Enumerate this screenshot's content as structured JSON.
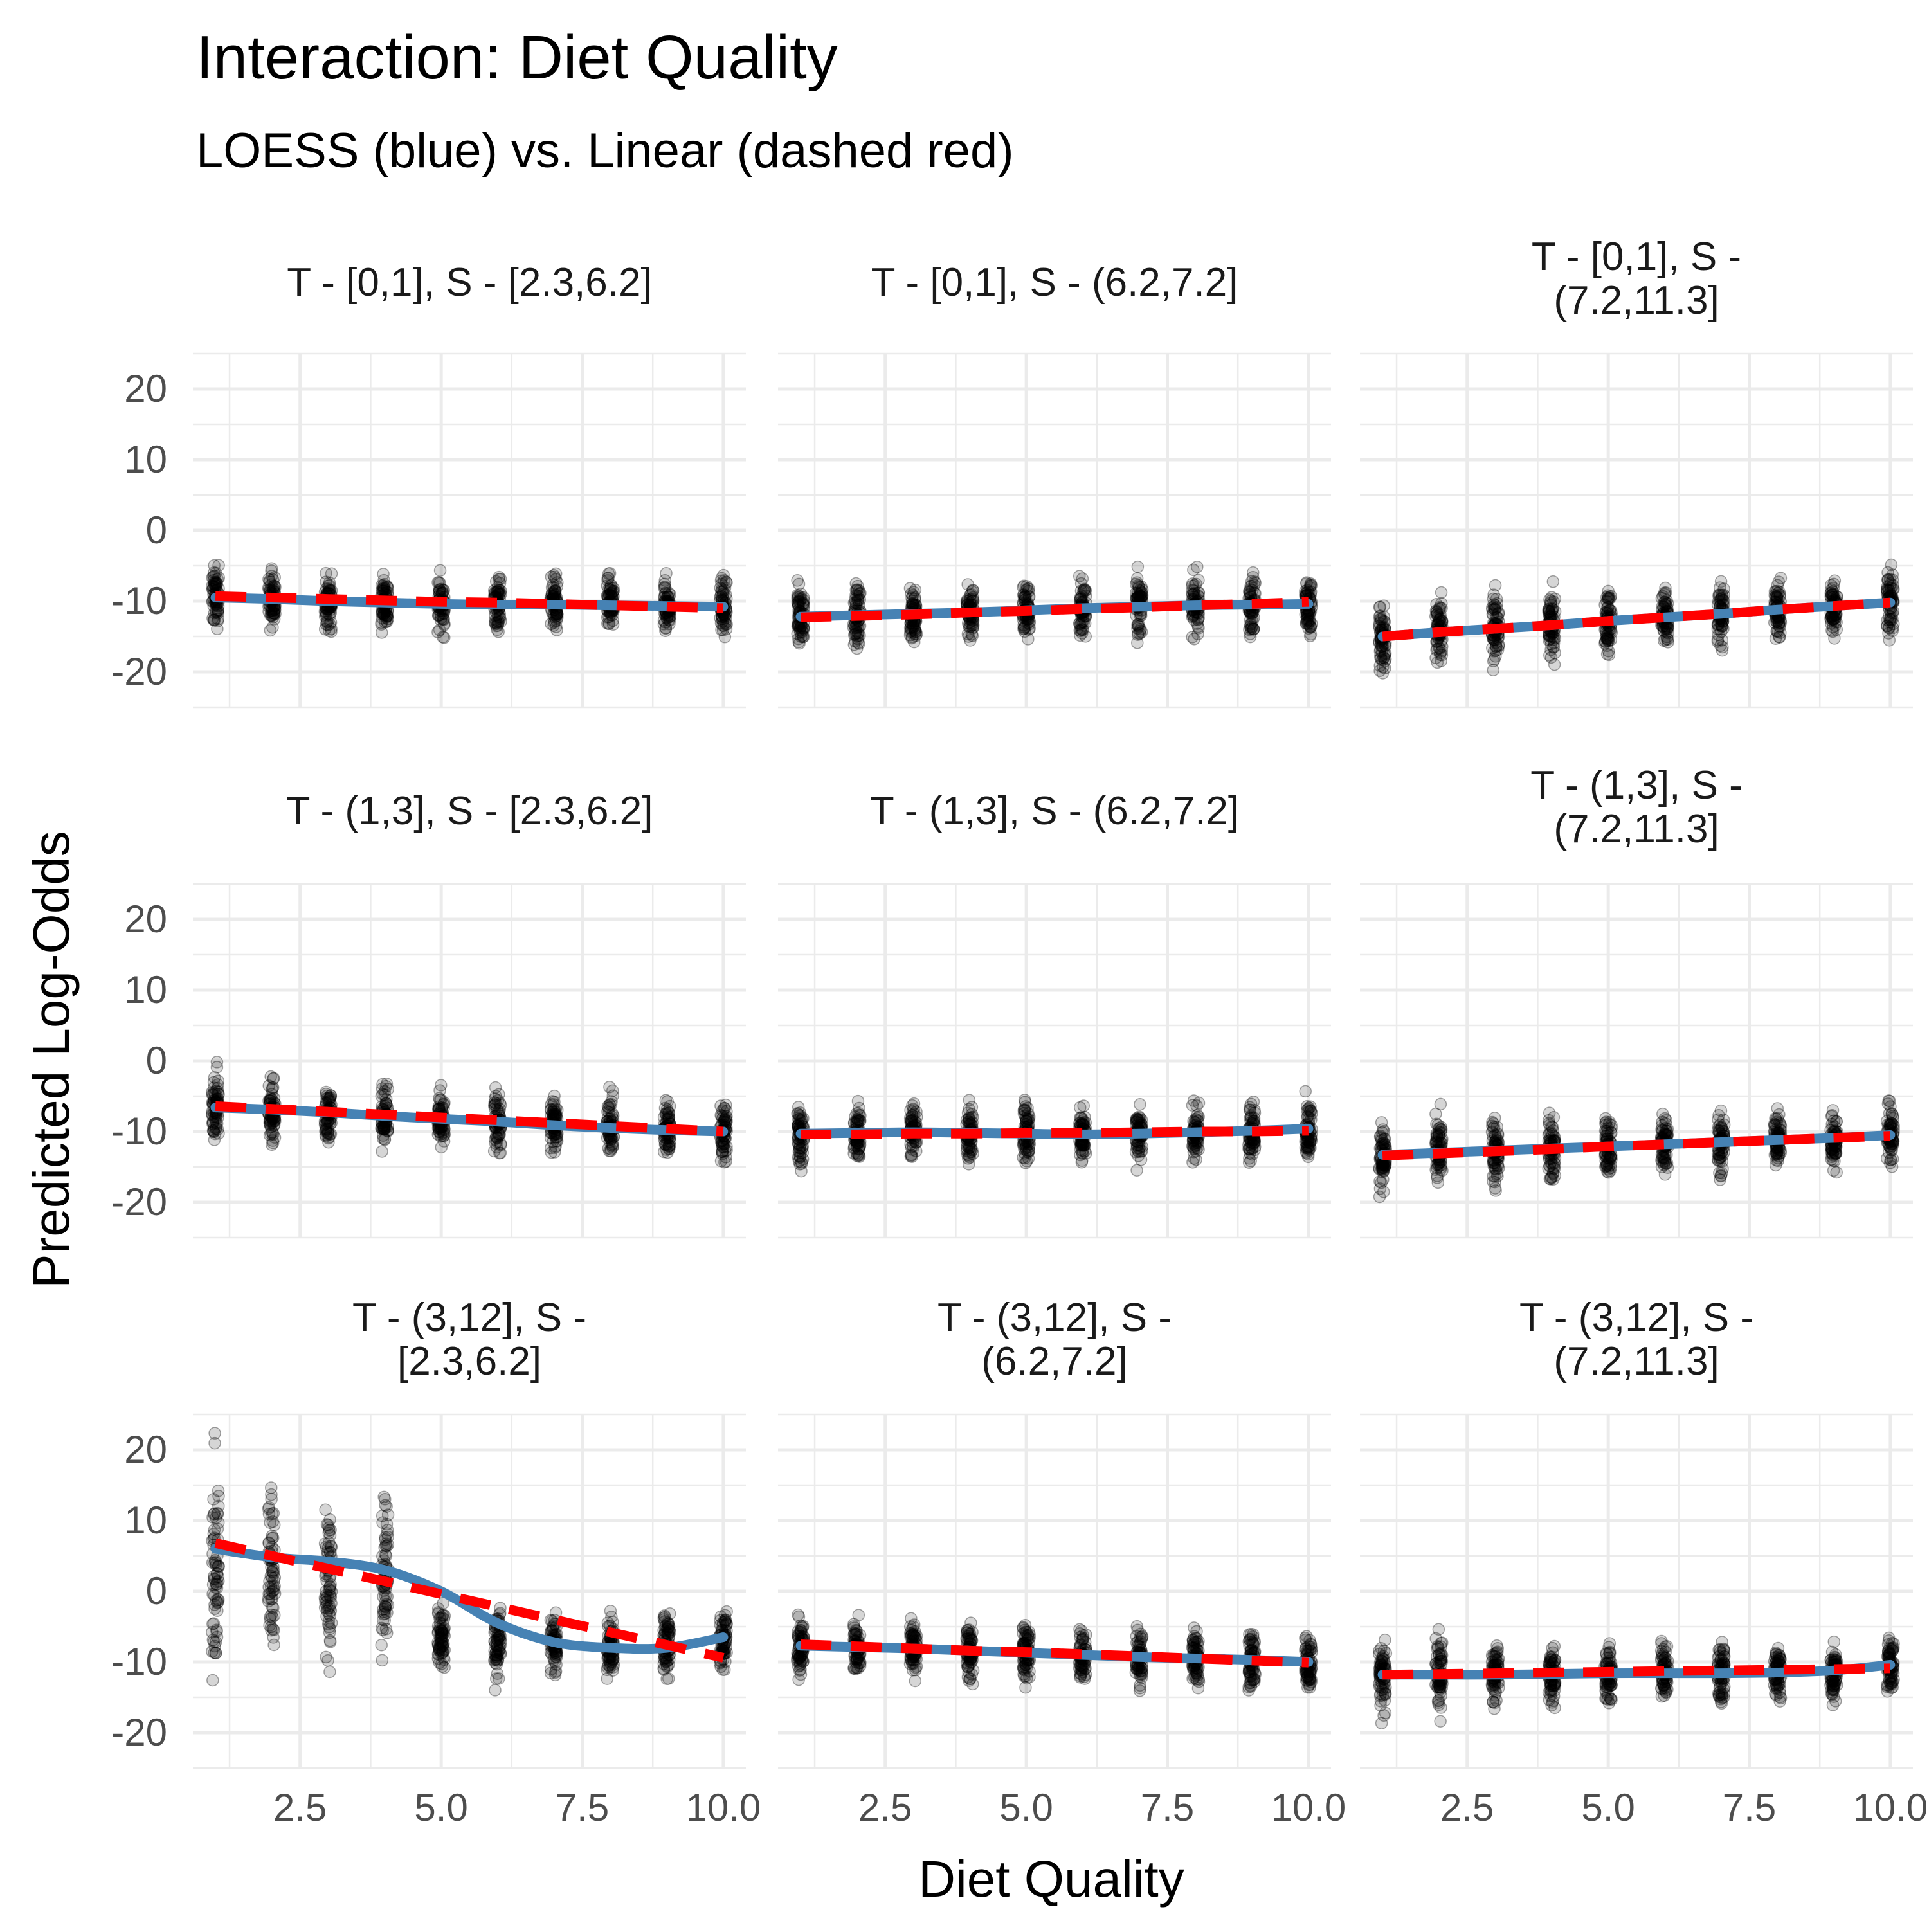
{
  "chart_data": {
    "type": "scatter",
    "title": "Interaction: Diet Quality",
    "subtitle": "LOESS (blue) vs. Linear (dashed red)",
    "xlabel": "Diet Quality",
    "ylabel": "Predicted Log-Odds",
    "xlim": [
      0.6,
      10.4
    ],
    "ylim": [
      -25,
      25
    ],
    "x_ticks": [
      2.5,
      5.0,
      7.5,
      10.0
    ],
    "x_tick_labels": [
      "2.5",
      "5.0",
      "7.5",
      "10.0"
    ],
    "y_ticks": [
      20,
      10,
      0,
      -10,
      -20
    ],
    "y_tick_labels": [
      "20",
      "10",
      "0",
      "-10",
      "-20"
    ],
    "x_values": [
      1,
      2,
      3,
      4,
      5,
      6,
      7,
      8,
      9,
      10
    ],
    "grid": true,
    "facets": [
      {
        "strip": [
          "T - [0,1], S - [2.3,6.2]"
        ],
        "points_center": [
          -9.5,
          -9.8,
          -10.0,
          -10.2,
          -10.5,
          -10.3,
          -10.4,
          -10.6,
          -10.5,
          -10.8
        ],
        "points_spread": [
          3.6,
          3.4,
          3.4,
          3.4,
          3.3,
          3.4,
          3.3,
          3.3,
          3.2,
          3.3
        ],
        "loess": [
          -9.5,
          -9.7,
          -10.0,
          -10.2,
          -10.4,
          -10.5,
          -10.5,
          -10.6,
          -10.7,
          -10.8
        ],
        "linear": [
          -9.3,
          -9.5,
          -9.7,
          -9.9,
          -10.1,
          -10.2,
          -10.4,
          -10.6,
          -10.8,
          -11.0
        ]
      },
      {
        "strip": [
          "T - [0,1], S - (6.2,7.2]"
        ],
        "points_center": [
          -12.0,
          -12.0,
          -11.8,
          -11.5,
          -11.2,
          -11.0,
          -10.8,
          -10.5,
          -10.5,
          -10.5
        ],
        "points_spread": [
          3.6,
          3.6,
          3.6,
          3.6,
          3.6,
          3.6,
          3.5,
          3.5,
          3.4,
          3.4
        ],
        "loess": [
          -12.2,
          -12.0,
          -11.8,
          -11.6,
          -11.3,
          -11.0,
          -10.8,
          -10.6,
          -10.5,
          -10.4
        ],
        "linear": [
          -12.3,
          -12.1,
          -11.9,
          -11.6,
          -11.4,
          -11.1,
          -10.9,
          -10.6,
          -10.4,
          -10.1
        ]
      },
      {
        "strip": [
          "T - [0,1], S -",
          "(7.2,11.3]"
        ],
        "points_center": [
          -15.5,
          -14.5,
          -14.0,
          -13.5,
          -12.8,
          -12.3,
          -11.8,
          -11.3,
          -10.8,
          -10.3
        ],
        "points_spread": [
          4.4,
          4.2,
          4.0,
          4.0,
          3.8,
          3.8,
          3.7,
          3.6,
          3.6,
          3.6
        ],
        "loess": [
          -15.0,
          -14.4,
          -13.9,
          -13.4,
          -12.8,
          -12.3,
          -11.8,
          -11.2,
          -10.7,
          -10.2
        ],
        "linear": [
          -15.0,
          -14.4,
          -13.9,
          -13.4,
          -12.8,
          -12.3,
          -11.8,
          -11.2,
          -10.7,
          -10.2
        ]
      },
      {
        "strip": [
          "T - (1,3], S - [2.3,6.2]"
        ],
        "points_center": [
          -6.5,
          -7.0,
          -7.5,
          -8.0,
          -8.4,
          -8.7,
          -9.0,
          -9.3,
          -9.6,
          -10.0
        ],
        "points_spread": [
          4.0,
          4.0,
          3.8,
          3.8,
          3.6,
          3.6,
          3.4,
          3.4,
          3.3,
          3.3
        ],
        "loess": [
          -6.6,
          -6.9,
          -7.3,
          -7.8,
          -8.2,
          -8.6,
          -9.1,
          -9.5,
          -9.8,
          -10.0
        ],
        "linear": [
          -6.4,
          -6.8,
          -7.2,
          -7.6,
          -8.0,
          -8.4,
          -8.8,
          -9.2,
          -9.6,
          -10.0
        ]
      },
      {
        "strip": [
          "T - (1,3], S - (6.2,7.2]"
        ],
        "points_center": [
          -10.3,
          -10.2,
          -10.2,
          -10.2,
          -10.3,
          -10.4,
          -10.3,
          -10.2,
          -10.0,
          -9.8
        ],
        "points_spread": [
          3.6,
          3.6,
          3.5,
          3.5,
          3.5,
          3.5,
          3.4,
          3.4,
          3.4,
          3.4
        ],
        "loess": [
          -10.3,
          -10.2,
          -10.1,
          -10.2,
          -10.3,
          -10.4,
          -10.3,
          -10.1,
          -9.9,
          -9.6
        ],
        "linear": [
          -10.4,
          -10.4,
          -10.3,
          -10.3,
          -10.2,
          -10.2,
          -10.1,
          -10.0,
          -10.0,
          -9.9
        ]
      },
      {
        "strip": [
          "T - (1,3], S -",
          "(7.2,11.3]"
        ],
        "points_center": [
          -13.5,
          -13.2,
          -12.8,
          -12.5,
          -12.2,
          -12.0,
          -11.7,
          -11.3,
          -11.0,
          -10.5
        ],
        "points_spread": [
          4.2,
          4.2,
          4.0,
          4.0,
          3.8,
          3.8,
          3.7,
          3.6,
          3.6,
          3.6
        ],
        "loess": [
          -13.3,
          -13.0,
          -12.7,
          -12.4,
          -12.1,
          -11.8,
          -11.5,
          -11.2,
          -10.9,
          -10.5
        ],
        "linear": [
          -13.4,
          -13.1,
          -12.8,
          -12.5,
          -12.1,
          -11.8,
          -11.5,
          -11.2,
          -10.9,
          -10.6
        ]
      },
      {
        "strip": [
          "T - (3,12], S -",
          "[2.3,6.2]"
        ],
        "points_center": [
          3.5,
          3.0,
          2.0,
          2.5,
          -6.5,
          -7.5,
          -7.5,
          -8.0,
          -7.5,
          -7.0
        ],
        "points_spread": [
          12.0,
          10.5,
          10.0,
          9.5,
          4.0,
          4.5,
          3.5,
          3.5,
          4.0,
          3.5
        ],
        "loess": [
          6.0,
          4.8,
          4.2,
          3.0,
          0.0,
          -4.5,
          -7.2,
          -8.0,
          -8.0,
          -6.5
        ],
        "linear": [
          6.8,
          5.0,
          3.2,
          1.4,
          -0.4,
          -2.2,
          -4.0,
          -5.8,
          -7.6,
          -9.4
        ]
      },
      {
        "strip": [
          "T - (3,12], S -",
          "(6.2,7.2]"
        ],
        "points_center": [
          -7.5,
          -8.0,
          -8.2,
          -8.5,
          -8.8,
          -9.0,
          -9.2,
          -9.5,
          -9.7,
          -10.0
        ],
        "points_spread": [
          3.6,
          3.6,
          3.5,
          3.5,
          3.5,
          3.4,
          3.4,
          3.4,
          3.3,
          3.3
        ],
        "loess": [
          -7.7,
          -7.9,
          -8.1,
          -8.4,
          -8.7,
          -9.0,
          -9.3,
          -9.5,
          -9.7,
          -10.0
        ],
        "linear": [
          -7.5,
          -7.8,
          -8.1,
          -8.4,
          -8.6,
          -8.9,
          -9.2,
          -9.5,
          -9.8,
          -10.1
        ]
      },
      {
        "strip": [
          "T - (3,12], S -",
          "(7.2,11.3]"
        ],
        "points_center": [
          -12.0,
          -12.0,
          -11.8,
          -11.7,
          -11.6,
          -11.5,
          -11.6,
          -11.5,
          -11.2,
          -10.8
        ],
        "points_spread": [
          4.2,
          4.4,
          4.0,
          4.0,
          3.8,
          3.8,
          3.8,
          3.6,
          3.6,
          3.6
        ],
        "loess": [
          -11.8,
          -11.8,
          -11.8,
          -11.7,
          -11.6,
          -11.6,
          -11.6,
          -11.5,
          -11.2,
          -10.4
        ],
        "linear": [
          -11.8,
          -11.7,
          -11.6,
          -11.5,
          -11.4,
          -11.3,
          -11.2,
          -11.1,
          -11.0,
          -10.9
        ]
      }
    ]
  },
  "colors": {
    "background": "#ffffff",
    "grid": "#ebebeb",
    "points": "#000000",
    "loess": "#4682B4",
    "linear": "#FF0000",
    "tick_text": "#4d4d4d",
    "strip_text": "#1a1a1a"
  }
}
